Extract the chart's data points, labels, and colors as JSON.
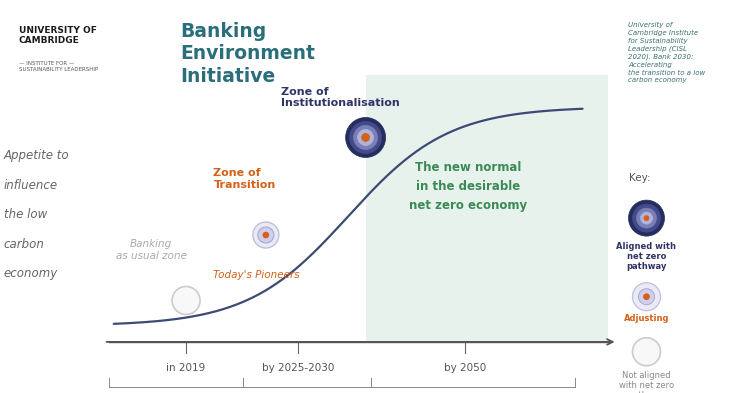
{
  "bg_color": "#ffffff",
  "green_zone_color": "#e8f2ed",
  "title_text": "Banking\nEnvironment\nInitiative",
  "title_color": "#2a6e7c",
  "ylabel_lines": [
    "Appetite to",
    "influence",
    "the low",
    "carbon",
    "economy"
  ],
  "ylabel_color": "#666666",
  "ylabel_fontsize": 8.5,
  "curve_color": "#3d4a75",
  "curve_linewidth": 1.6,
  "zone1_label": "Banking\nas usual zone",
  "zone1_color": "#aaaaaa",
  "zone2_label": "Zone of\nTransition",
  "zone2_color": "#d4601a",
  "zone3_label": "Zone of\nInstitutionalisation",
  "zone3_color": "#2e3566",
  "pioneers_label": "Today's Pioneers",
  "pioneers_color": "#d4601a",
  "new_normal_label": "The new normal\nin the desirable\nnet zero economy",
  "new_normal_color": "#3a8a55",
  "x_tick_labels": [
    "in 2019",
    "by 2025-2030",
    "by 2050"
  ],
  "axis_color": "#555555",
  "source_text": "University of\nCambridge Institute\nfor Sustainability\nLeadership (CISL\n2020). Bank 2030:\nAccelerating\nthe transition to a low\ncarbon economy",
  "source_color": "#3a7070",
  "key_label": "Key:",
  "key_aligned_label": "Aligned with\nnet zero\npathway",
  "key_aligned_color": "#2e3566",
  "key_adjusting_label": "Adjusting",
  "key_adjusting_color": "#d4601a",
  "key_not_aligned_label": "Not aligned\nwith net zero\npathway",
  "key_not_aligned_color": "#888888",
  "top_bar_color": "#3a8a8a",
  "teal_line_color": "#2a8080"
}
